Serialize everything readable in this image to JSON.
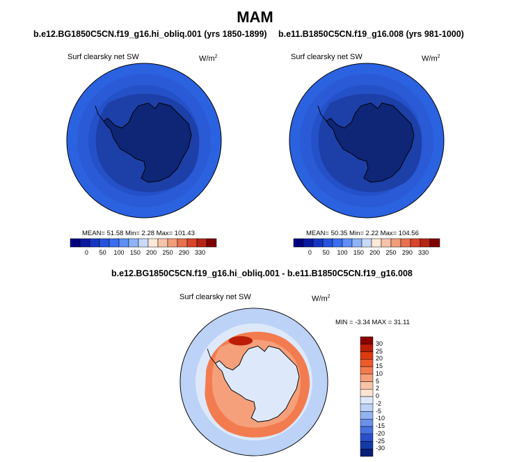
{
  "main_title": "MAM",
  "panels": [
    {
      "title": "b.e12.BG1850C5CN.f19_g16.hi_obliq.001 (yrs 1850-1899)",
      "var_label": "Surf clearsky net SW",
      "units": "W/m",
      "units_sup": "2",
      "stats": "MEAN=  51.58  Min=   2.28  Max= 101.43"
    },
    {
      "title": "b.e11.B1850C5CN.f19_g16.008 (yrs 981-1000)",
      "var_label": "Surf clearsky net SW",
      "units": "W/m",
      "units_sup": "2",
      "stats": "MEAN=  50.35  Min=   2.22  Max= 104.56"
    },
    {
      "title": "b.e12.BG1850C5CN.f19_g16.hi_obliq.001 - b.e11.B1850C5CN.f19_g16.008",
      "var_label": "Surf clearsky net SW",
      "units": "W/m",
      "units_sup": "2",
      "stats": "MIN = -3.34 MAX = 31.11"
    }
  ],
  "chart_data": [
    {
      "type": "heatmap",
      "projection": "south-polar-stereographic",
      "title": "b.e12.BG1850C5CN.f19_g16.hi_obliq.001 (yrs 1850-1899)",
      "variable": "Surf clearsky net SW",
      "units": "W/m2",
      "mean": 51.58,
      "min": 2.28,
      "max": 101.43,
      "colorbar_ticks": [
        0,
        50,
        100,
        150,
        200,
        250,
        290,
        330
      ],
      "colorbar_colors": [
        "#00007f",
        "#0a1a9e",
        "#1536c2",
        "#2553db",
        "#3b6df0",
        "#5e8ef6",
        "#8fb3f7",
        "#c9dbf9",
        "#fde9d8",
        "#f7c3a8",
        "#f19d7a",
        "#e8704f",
        "#d8452a",
        "#b52415",
        "#7f0000"
      ]
    },
    {
      "type": "heatmap",
      "projection": "south-polar-stereographic",
      "title": "b.e11.B1850C5CN.f19_g16.008 (yrs 981-1000)",
      "variable": "Surf clearsky net SW",
      "units": "W/m2",
      "mean": 50.35,
      "min": 2.22,
      "max": 104.56,
      "colorbar_ticks": [
        0,
        50,
        100,
        150,
        200,
        250,
        290,
        330
      ],
      "colorbar_colors": [
        "#00007f",
        "#0a1a9e",
        "#1536c2",
        "#2553db",
        "#3b6df0",
        "#5e8ef6",
        "#8fb3f7",
        "#c9dbf9",
        "#fde9d8",
        "#f7c3a8",
        "#f19d7a",
        "#e8704f",
        "#d8452a",
        "#b52415",
        "#7f0000"
      ]
    },
    {
      "type": "heatmap",
      "projection": "south-polar-stereographic",
      "title": "b.e12.BG1850C5CN.f19_g16.hi_obliq.001 - b.e11.B1850C5CN.f19_g16.008",
      "variable": "Surf clearsky net SW",
      "units": "W/m2",
      "min": -3.34,
      "max": 31.11,
      "colorbar_ticks": [
        30,
        25,
        20,
        15,
        10,
        5,
        2,
        0,
        -2,
        -5,
        -10,
        -15,
        -20,
        -25,
        -30
      ],
      "colorbar_colors": [
        "#8b0000",
        "#bb1d07",
        "#dd3a10",
        "#ee5a2a",
        "#f27c50",
        "#f5a07a",
        "#f8c3a6",
        "#fde3d0",
        "#dde9fa",
        "#bcd2f6",
        "#93b4f2",
        "#6b91ea",
        "#4771de",
        "#2a4fcb",
        "#143aa8",
        "#0a1e7a"
      ]
    }
  ]
}
